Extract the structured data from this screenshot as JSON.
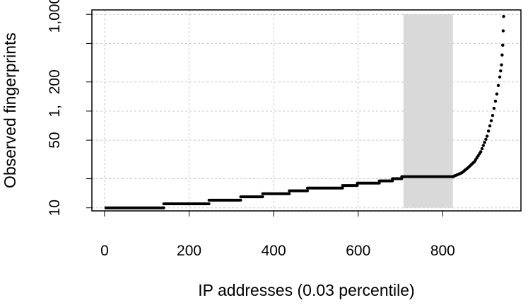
{
  "chart_data": {
    "type": "scatter",
    "title": "",
    "xlabel": "IP addresses (0.03 percentile)",
    "ylabel": "Observed fingerprints",
    "xlim": [
      -30,
      985
    ],
    "ylim": [
      9.3,
      1110
    ],
    "y_scale": "log",
    "x_ticks": [
      0,
      200,
      400,
      600,
      800
    ],
    "x_tick_labels": [
      "0",
      "200",
      "400",
      "600",
      "800"
    ],
    "y_ticks": [
      10,
      50,
      200,
      1000
    ],
    "y_tick_labels": [
      "10",
      "50",
      "200",
      "1,000"
    ],
    "y_minor_ticks": [
      20,
      100,
      500
    ],
    "y_minor_tick_labels": [
      "",
      "1,",
      ""
    ],
    "grid": true,
    "grid_style": "dotted",
    "highlight_band": {
      "x_from": 707,
      "x_to": 824,
      "color": "#d9d9d9"
    },
    "point_color": "#000000",
    "steps": [
      {
        "x_from": 3,
        "x_to": 140,
        "y": 10
      },
      {
        "x_from": 140,
        "x_to": 247,
        "y": 11
      },
      {
        "x_from": 247,
        "x_to": 322,
        "y": 12
      },
      {
        "x_from": 322,
        "x_to": 374,
        "y": 13
      },
      {
        "x_from": 374,
        "x_to": 437,
        "y": 14
      },
      {
        "x_from": 437,
        "x_to": 480,
        "y": 15
      },
      {
        "x_from": 480,
        "x_to": 563,
        "y": 16
      },
      {
        "x_from": 563,
        "x_to": 598,
        "y": 17
      },
      {
        "x_from": 598,
        "x_to": 650,
        "y": 18
      },
      {
        "x_from": 650,
        "x_to": 681,
        "y": 19
      },
      {
        "x_from": 681,
        "x_to": 703,
        "y": 20
      },
      {
        "x_from": 703,
        "x_to": 824,
        "y": 21
      }
    ],
    "tail": [
      {
        "x": 824,
        "y": 21
      },
      {
        "x": 845,
        "y": 23
      },
      {
        "x": 860,
        "y": 26
      },
      {
        "x": 875,
        "y": 30
      },
      {
        "x": 890,
        "y": 38
      },
      {
        "x": 905,
        "y": 55
      },
      {
        "x": 918,
        "y": 90
      },
      {
        "x": 928,
        "y": 150
      },
      {
        "x": 935,
        "y": 225
      },
      {
        "x": 939,
        "y": 300
      },
      {
        "x": 942,
        "y": 480
      },
      {
        "x": 944,
        "y": 950
      }
    ]
  }
}
